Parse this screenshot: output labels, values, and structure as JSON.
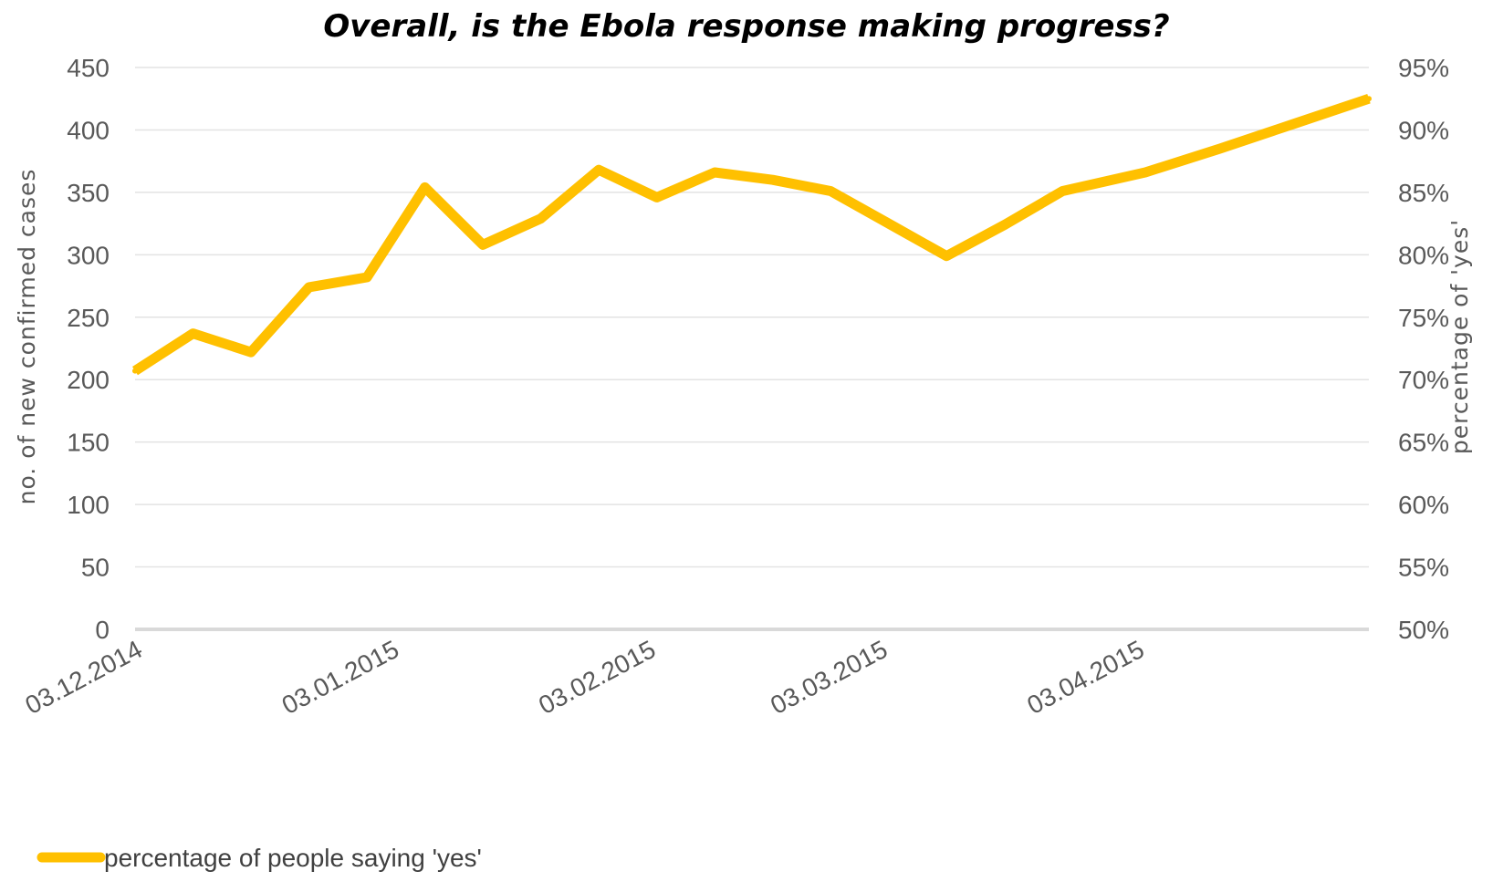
{
  "chart_data": {
    "type": "line",
    "title": "Overall, is the Ebola response making progress?",
    "ylabel_left": "no. of new confirmed cases",
    "ylabel_right": "percentage of 'yes'",
    "xlabel": "",
    "ylim_left": [
      0,
      450
    ],
    "ylim_right": [
      50,
      95
    ],
    "yticks_left": [
      "0",
      "50",
      "100",
      "150",
      "200",
      "250",
      "300",
      "350",
      "400",
      "450"
    ],
    "yticks_right": [
      "50%",
      "55%",
      "60%",
      "65%",
      "70%",
      "75%",
      "80%",
      "85%",
      "90%",
      "95%"
    ],
    "xticks": [
      "03.12.2014",
      "03.01.2015",
      "03.02.2015",
      "03.03.2015",
      "03.04.2015"
    ],
    "xlim": [
      "2014-12-03",
      "2015-05-01"
    ],
    "grid": true,
    "legend_position": "bottom-left",
    "color": "#FFC000",
    "series": [
      {
        "name": "percentage of people saying 'yes'",
        "axis": "right",
        "x": [
          "2014-12-03",
          "2014-12-10",
          "2014-12-17",
          "2014-12-24",
          "2014-12-31",
          "2015-01-07",
          "2015-01-14",
          "2015-01-21",
          "2015-01-28",
          "2015-02-04",
          "2015-02-11",
          "2015-02-18",
          "2015-02-25",
          "2015-03-04",
          "2015-03-11",
          "2015-03-18",
          "2015-03-25",
          "2015-04-04",
          "2015-04-13",
          "2015-04-22",
          "2015-05-01"
        ],
        "values": [
          70.7,
          73.7,
          72.2,
          77.4,
          78.2,
          85.4,
          80.8,
          82.9,
          86.8,
          84.6,
          86.6,
          86.0,
          85.1,
          82.5,
          79.9,
          82.4,
          85.1,
          86.6,
          88.5,
          90.5,
          92.5
        ]
      }
    ]
  }
}
